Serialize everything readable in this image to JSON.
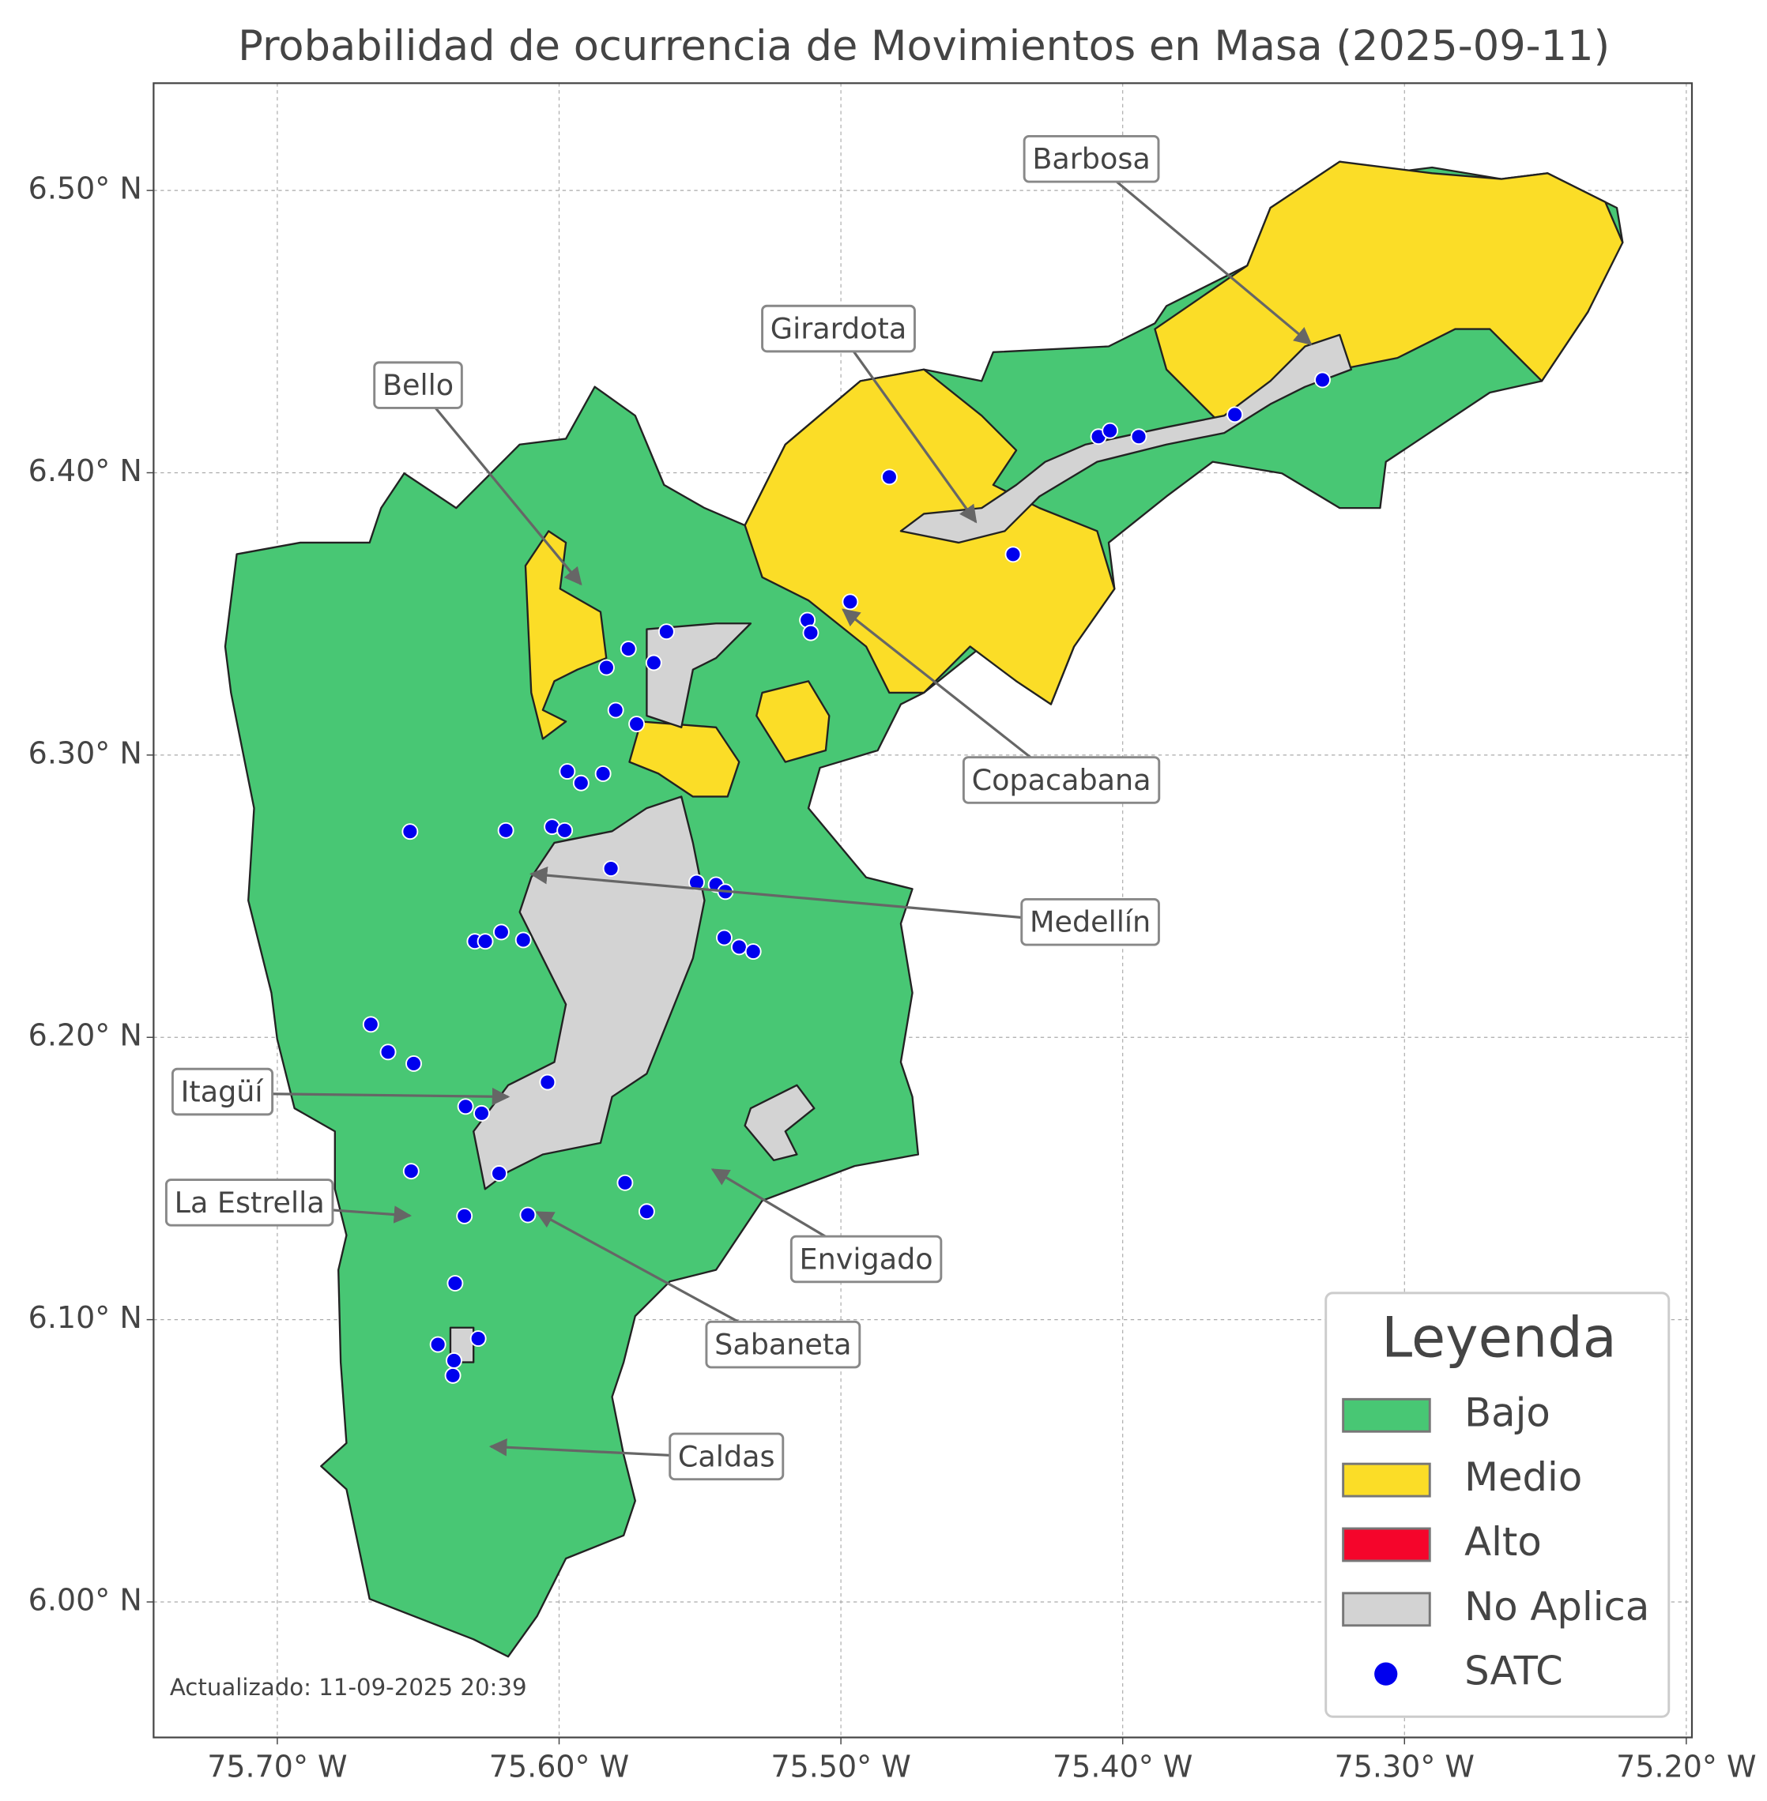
{
  "chart_data": {
    "type": "map",
    "title": "Probabilidad de ocurrencia de Movimientos en Masa (2025-09-11)",
    "xlim": [
      -75.7439,
      -75.198
    ],
    "ylim": [
      5.952,
      6.538
    ],
    "xticks": [
      {
        "value": -75.7,
        "label": "75.70° W"
      },
      {
        "value": -75.6,
        "label": "75.60° W"
      },
      {
        "value": -75.5,
        "label": "75.50° W"
      },
      {
        "value": -75.4,
        "label": "75.40° W"
      },
      {
        "value": -75.3,
        "label": "75.30° W"
      },
      {
        "value": -75.2,
        "label": "75.20° W"
      }
    ],
    "yticks": [
      {
        "value": 6.0,
        "label": "6.00° N"
      },
      {
        "value": 6.1,
        "label": "6.10° N"
      },
      {
        "value": 6.2,
        "label": "6.20° N"
      },
      {
        "value": 6.3,
        "label": "6.30° N"
      },
      {
        "value": 6.4,
        "label": "6.40° N"
      },
      {
        "value": 6.5,
        "label": "6.50° N"
      }
    ],
    "grid": true,
    "legend": {
      "title": "Leyenda",
      "corner": "lower right",
      "entries": [
        {
          "name": "Bajo",
          "color": "#48c774"
        },
        {
          "name": "Medio",
          "color": "#fbdd27"
        },
        {
          "name": "Alto",
          "color": "#f5052b"
        },
        {
          "name": "No Aplica",
          "color": "#d3d3d3"
        },
        {
          "name": "SATC",
          "color": "#0000ee"
        }
      ]
    },
    "annotations": [
      "Barbosa",
      "Girardota",
      "Bello",
      "Copacabana",
      "Medellín",
      "Itagüí",
      "La Estrella",
      "Envigado",
      "Sabaneta",
      "Caldas"
    ],
    "satc": {
      "lon": [
        -75.4828,
        -75.4086,
        -75.4045,
        -75.3943,
        -75.3602,
        -75.3291,
        -75.4389,
        -75.4967,
        -75.5119,
        -75.5107,
        -75.5619,
        -75.5754,
        -75.5664,
        -75.5832,
        -75.5799,
        -75.5725,
        -75.5844,
        -75.5971,
        -75.5922,
        -75.6529,
        -75.6189,
        -75.6025,
        -75.598,
        -75.5816,
        -75.5512,
        -75.5443,
        -75.541,
        -75.6299,
        -75.6262,
        -75.6205,
        -75.6127,
        -75.5414,
        -75.5361,
        -75.5311,
        -75.6668,
        -75.6607,
        -75.6516,
        -75.6041,
        -75.6332,
        -75.6275,
        -75.6525,
        -75.6213,
        -75.5766,
        -75.5689,
        -75.6336,
        -75.6111,
        -75.6369,
        -75.643,
        -75.6287,
        -75.6373,
        -75.6377
      ],
      "lat": [
        6.3985,
        6.4128,
        6.4149,
        6.4128,
        6.4206,
        6.4329,
        6.3711,
        6.3543,
        6.3478,
        6.3433,
        6.3437,
        6.3376,
        6.3327,
        6.331,
        6.3159,
        6.311,
        6.2934,
        6.2942,
        6.2901,
        6.2729,
        6.2733,
        6.2746,
        6.2733,
        6.2598,
        6.2549,
        6.2541,
        6.2516,
        6.234,
        6.234,
        6.2373,
        6.2345,
        6.2353,
        6.232,
        6.2304,
        6.2046,
        6.1948,
        6.1907,
        6.1841,
        6.1755,
        6.1731,
        6.1526,
        6.1518,
        6.1485,
        6.1383,
        6.1367,
        6.1371,
        6.1129,
        6.0912,
        6.0933,
        6.0855,
        6.0802
      ]
    },
    "footer": "Actualizado: 11-09-2025 20:39"
  }
}
